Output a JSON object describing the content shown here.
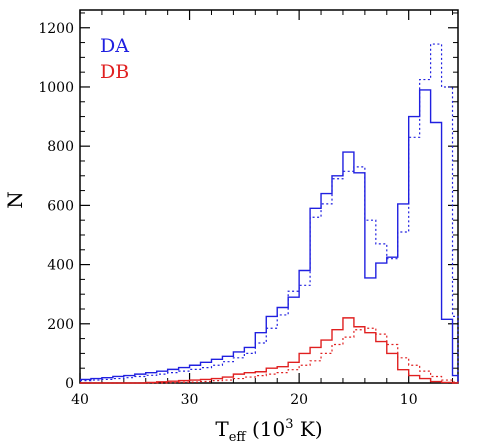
{
  "chart_data": {
    "type": "line",
    "xlabel": {
      "main": "T",
      "sub": "eff",
      "rest_pre": " (10",
      "sup": "3",
      "rest_post": " K)"
    },
    "ylabel": "N",
    "xlim": [
      40,
      5.5
    ],
    "ylim": [
      0,
      1260
    ],
    "x_ticks": [
      40,
      30,
      20,
      10
    ],
    "y_ticks": [
      0,
      200,
      400,
      600,
      800,
      1000,
      1200
    ],
    "legend_position": "top-left",
    "bin_width": 1,
    "bin_edges_from": 40,
    "series": [
      {
        "name": "DA",
        "line": "solid",
        "color": "#2020e0",
        "values": [
          12,
          15,
          18,
          22,
          25,
          30,
          35,
          40,
          46,
          52,
          60,
          70,
          80,
          90,
          105,
          120,
          170,
          225,
          255,
          290,
          380,
          590,
          640,
          700,
          780,
          710,
          355,
          405,
          425,
          605,
          900,
          990,
          880,
          215,
          25
        ]
      },
      {
        "name": "DA",
        "line": "dotted",
        "color": "#2020e0",
        "values": [
          8,
          10,
          12,
          15,
          18,
          22,
          26,
          30,
          35,
          40,
          46,
          52,
          60,
          72,
          85,
          100,
          135,
          185,
          230,
          310,
          330,
          560,
          605,
          690,
          715,
          730,
          550,
          470,
          420,
          510,
          830,
          1025,
          1145,
          1000,
          225
        ]
      },
      {
        "name": "DB",
        "line": "solid",
        "color": "#e02020",
        "values": [
          0,
          0,
          0,
          0,
          0,
          0,
          2,
          4,
          6,
          8,
          10,
          12,
          15,
          20,
          30,
          35,
          38,
          50,
          55,
          70,
          100,
          120,
          145,
          180,
          220,
          190,
          170,
          140,
          100,
          45,
          25,
          15,
          5,
          2,
          0
        ]
      },
      {
        "name": "DB",
        "line": "dotted",
        "color": "#e02020",
        "values": [
          0,
          0,
          0,
          0,
          0,
          0,
          0,
          0,
          1,
          2,
          3,
          5,
          8,
          10,
          15,
          20,
          25,
          30,
          35,
          45,
          60,
          75,
          100,
          130,
          155,
          180,
          185,
          165,
          130,
          85,
          60,
          40,
          22,
          10,
          3
        ]
      }
    ],
    "legend": [
      {
        "label": "DA",
        "color": "#2020e0"
      },
      {
        "label": "DB",
        "color": "#e02020"
      }
    ]
  }
}
